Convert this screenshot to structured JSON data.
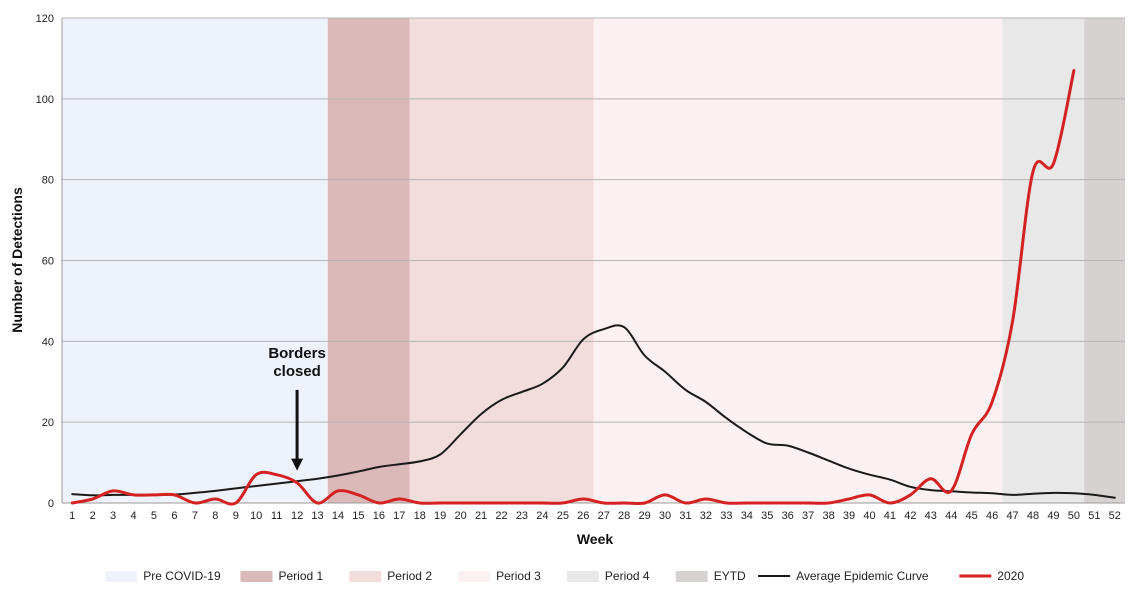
{
  "chart_data": {
    "type": "line",
    "title": "",
    "xlabel": "Week",
    "ylabel": "Number of Detections",
    "ylim": [
      0,
      120
    ],
    "yticks": [
      0,
      20,
      40,
      60,
      80,
      100,
      120
    ],
    "x": [
      1,
      2,
      3,
      4,
      5,
      6,
      7,
      8,
      9,
      10,
      11,
      12,
      13,
      14,
      15,
      16,
      17,
      18,
      19,
      20,
      21,
      22,
      23,
      24,
      25,
      26,
      27,
      28,
      29,
      30,
      31,
      32,
      33,
      34,
      35,
      36,
      37,
      38,
      39,
      40,
      41,
      42,
      43,
      44,
      45,
      46,
      47,
      48,
      49,
      50,
      51,
      52
    ],
    "grid": "horizontal",
    "legend_position": "bottom",
    "periods": [
      {
        "name": "Pre COVID-19",
        "start": 0.5,
        "end": 13.5,
        "color": "#eef3fb"
      },
      {
        "name": "Period 1",
        "start": 13.5,
        "end": 17.5,
        "color": "#dcb9b9"
      },
      {
        "name": "Period 2",
        "start": 17.5,
        "end": 26.5,
        "color": "#f3dcdc"
      },
      {
        "name": "Period 3",
        "start": 26.5,
        "end": 46.5,
        "color": "#fbf1f2"
      },
      {
        "name": "Period 4",
        "start": 46.5,
        "end": 50.5,
        "color": "#e8e8e8"
      },
      {
        "name": "EYTD",
        "start": 50.5,
        "end": 52.5,
        "color": "#d6d2d2"
      }
    ],
    "series": [
      {
        "name": "Average Epidemic Curve",
        "color": "#1a1a1a",
        "values": [
          2.2,
          1.9,
          2.0,
          2.0,
          2.0,
          2.1,
          2.5,
          3.0,
          3.6,
          4.2,
          4.8,
          5.4,
          6.0,
          6.8,
          7.8,
          8.9,
          9.6,
          10.3,
          12.0,
          17.0,
          22.0,
          25.5,
          27.5,
          29.5,
          33.5,
          40.5,
          43.0,
          43.5,
          36.5,
          32.5,
          28.0,
          25.0,
          21.0,
          17.5,
          14.7,
          14.2,
          12.5,
          10.5,
          8.5,
          7.0,
          5.8,
          4.0,
          3.2,
          2.9,
          2.6,
          2.4,
          2.0,
          2.3,
          2.5,
          2.4,
          2.0,
          1.3
        ]
      },
      {
        "name": "2020",
        "color": "#d42222",
        "values": [
          0,
          1,
          3,
          2,
          2,
          2,
          0,
          1,
          0,
          7,
          7,
          5,
          0,
          3,
          2,
          0,
          1,
          0,
          0,
          0,
          0,
          0,
          0,
          0,
          0,
          1,
          0,
          0,
          0,
          2,
          0,
          1,
          0,
          0,
          0,
          0,
          0,
          0,
          1,
          2,
          0,
          2,
          6,
          3,
          17,
          25,
          45,
          82,
          84,
          107,
          null,
          null
        ]
      }
    ],
    "annotations": [
      {
        "text_lines": [
          "Borders",
          "closed"
        ],
        "x": 12,
        "arrow_to_y": 8,
        "arrow_from_y": 28
      }
    ]
  }
}
